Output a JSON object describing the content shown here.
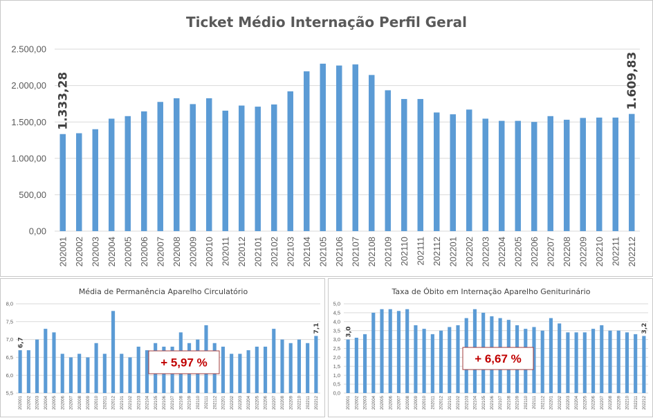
{
  "chart_data": [
    {
      "type": "bar",
      "title": "Ticket Médio Internação Perfil Geral",
      "categories": [
        "202001",
        "202002",
        "202003",
        "202004",
        "202005",
        "202006",
        "202007",
        "202008",
        "202009",
        "202010",
        "202011",
        "202012",
        "202101",
        "202102",
        "202103",
        "202104",
        "202105",
        "202106",
        "202107",
        "202108",
        "202109",
        "202110",
        "202111",
        "202112",
        "202201",
        "202202",
        "202203",
        "202204",
        "202205",
        "202206",
        "202207",
        "202208",
        "202209",
        "202210",
        "202211",
        "202212"
      ],
      "values": [
        1333.28,
        1345,
        1400,
        1545,
        1580,
        1645,
        1775,
        1825,
        1745,
        1825,
        1655,
        1725,
        1710,
        1740,
        1920,
        2195,
        2300,
        2275,
        2290,
        2145,
        1935,
        1815,
        1815,
        1630,
        1605,
        1670,
        1545,
        1515,
        1515,
        1500,
        1580,
        1530,
        1555,
        1560,
        1560,
        1609.83
      ],
      "yticks": [
        "0,00",
        "500,00",
        "1.000,00",
        "1.500,00",
        "2.000,00",
        "2.500,00"
      ],
      "ylim": [
        0,
        2500
      ],
      "first_label": "1.333,28",
      "last_label": "1.609,83",
      "grid": true
    },
    {
      "type": "bar",
      "title": "Média de Permanência Aparelho Circulatório",
      "categories": [
        "202001",
        "202002",
        "202003",
        "202004",
        "202005",
        "202006",
        "202007",
        "202008",
        "202009",
        "202010",
        "202011",
        "202012",
        "202101",
        "202102",
        "202103",
        "202104",
        "202105",
        "202106",
        "202107",
        "202108",
        "202109",
        "202110",
        "202111",
        "202112",
        "202201",
        "202202",
        "202203",
        "202204",
        "202205",
        "202206",
        "202207",
        "202208",
        "202209",
        "202210",
        "202211",
        "202212"
      ],
      "values": [
        6.7,
        6.7,
        7.0,
        7.3,
        7.2,
        6.6,
        6.5,
        6.6,
        6.5,
        6.9,
        6.6,
        7.8,
        6.6,
        6.5,
        6.8,
        6.7,
        6.9,
        6.8,
        6.8,
        7.2,
        6.9,
        7.0,
        7.4,
        6.9,
        6.8,
        6.6,
        6.6,
        6.7,
        6.8,
        6.8,
        7.3,
        7.0,
        6.9,
        7.0,
        6.9,
        7.1
      ],
      "yticks": [
        "5,5",
        "6,0",
        "6,5",
        "7,0",
        "7,5",
        "8,0"
      ],
      "ylim": [
        5.5,
        8.0
      ],
      "first_label": "6,7",
      "last_label": "7,1",
      "badge": "+ 5,97 %",
      "grid": true
    },
    {
      "type": "bar",
      "title": "Taxa de Óbito em Internação Aparelho Geniturinário",
      "categories": [
        "202001",
        "202002",
        "202003",
        "202004",
        "202005",
        "202006",
        "202007",
        "202008",
        "202009",
        "202010",
        "202011",
        "202012",
        "202101",
        "202102",
        "202103",
        "202104",
        "202105",
        "202106",
        "202107",
        "202108",
        "202109",
        "202110",
        "202111",
        "202112",
        "202201",
        "202202",
        "202203",
        "202204",
        "202205",
        "202206",
        "202207",
        "202208",
        "202209",
        "202210",
        "202211",
        "202212"
      ],
      "values": [
        3.0,
        3.1,
        3.3,
        4.5,
        4.7,
        4.7,
        4.6,
        4.7,
        3.8,
        3.6,
        3.3,
        3.5,
        3.7,
        3.8,
        4.2,
        4.7,
        4.5,
        4.3,
        4.2,
        4.1,
        3.8,
        3.6,
        3.7,
        3.5,
        4.2,
        3.9,
        3.4,
        3.4,
        3.4,
        3.6,
        3.8,
        3.5,
        3.5,
        3.4,
        3.3,
        3.2
      ],
      "yticks": [
        "0,0",
        "0,5",
        "1,0",
        "1,5",
        "2,0",
        "2,5",
        "3,0",
        "3,5",
        "4,0",
        "4,5",
        "5,0"
      ],
      "ylim": [
        0,
        5.0
      ],
      "first_label": "3,0",
      "last_label": "3,2",
      "badge": "+ 6,67 %",
      "grid": true
    }
  ]
}
